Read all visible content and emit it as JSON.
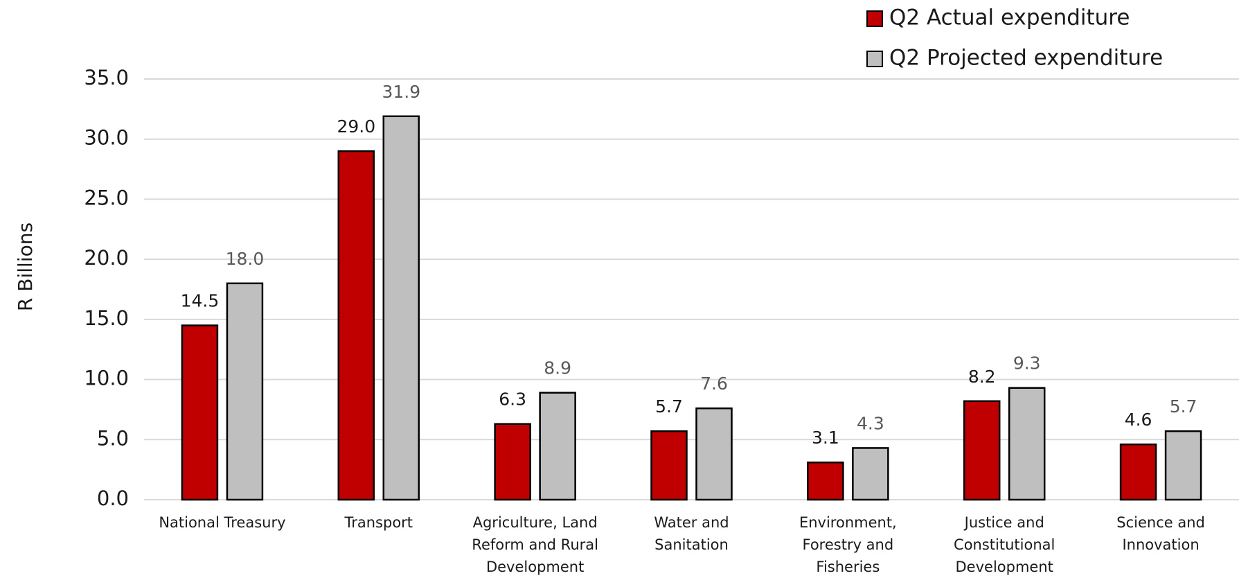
{
  "chart_data": {
    "type": "bar",
    "y_label": "R Billions",
    "categories": [
      "National Treasury",
      "Transport",
      "Agriculture, Land Reform and Rural Development",
      "Water and Sanitation",
      "Environment, Forestry and Fisheries",
      "Justice and Constitutional Development",
      "Science and Innovation"
    ],
    "series": [
      {
        "name": "Q2 Actual expenditure",
        "color": "#c00000",
        "label_color": "#1a1a1a",
        "values": [
          14.5,
          29.0,
          6.3,
          5.7,
          3.1,
          8.2,
          4.6
        ],
        "value_labels": [
          "14.5",
          "29.0",
          "6.3",
          "5.7",
          "3.1",
          "8.2",
          "4.6"
        ]
      },
      {
        "name": "Q2 Projected expenditure",
        "color": "#bfbfbf",
        "label_color": "#595959",
        "values": [
          18.0,
          31.9,
          8.9,
          7.6,
          4.3,
          9.3,
          5.7
        ],
        "value_labels": [
          "18.0",
          "31.9",
          "8.9",
          "7.6",
          "4.3",
          "9.3",
          "5.7"
        ]
      }
    ],
    "ylim": [
      0,
      35
    ],
    "yticks": [
      {
        "value": 0,
        "label": "0.0"
      },
      {
        "value": 5,
        "label": "5.0"
      },
      {
        "value": 10,
        "label": "10.0"
      },
      {
        "value": 15,
        "label": "15.0"
      },
      {
        "value": 20,
        "label": "20.0"
      },
      {
        "value": 25,
        "label": "25.0"
      },
      {
        "value": 30,
        "label": "30.0"
      },
      {
        "value": 35,
        "label": "35.0"
      }
    ],
    "grid": true,
    "legend": "upper right"
  }
}
